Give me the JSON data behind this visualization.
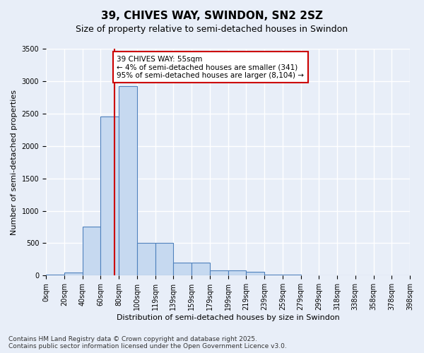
{
  "title": "39, CHIVES WAY, SWINDON, SN2 2SZ",
  "subtitle": "Size of property relative to semi-detached houses in Swindon",
  "xlabel": "Distribution of semi-detached houses by size in Swindon",
  "ylabel": "Number of semi-detached properties",
  "footer": "Contains HM Land Registry data © Crown copyright and database right 2025.\nContains public sector information licensed under the Open Government Licence v3.0.",
  "bins": [
    "0sqm",
    "20sqm",
    "40sqm",
    "60sqm",
    "80sqm",
    "100sqm",
    "119sqm",
    "139sqm",
    "159sqm",
    "179sqm",
    "199sqm",
    "219sqm",
    "239sqm",
    "259sqm",
    "279sqm",
    "299sqm",
    "318sqm",
    "338sqm",
    "358sqm",
    "378sqm",
    "398sqm"
  ],
  "values": [
    10,
    45,
    760,
    2450,
    2920,
    510,
    510,
    195,
    195,
    85,
    85,
    60,
    15,
    15,
    5,
    5,
    0,
    0,
    0,
    0
  ],
  "bar_color": "#c6d9f0",
  "bar_edge_color": "#4f81bd",
  "annotation_text": "39 CHIVES WAY: 55sqm\n← 4% of semi-detached houses are smaller (341)\n95% of semi-detached houses are larger (8,104) →",
  "annotation_box_color": "#ffffff",
  "annotation_box_edge": "#cc0000",
  "vline_color": "#cc0000",
  "vline_x": 3.75,
  "ylim": [
    0,
    3500
  ],
  "yticks": [
    0,
    500,
    1000,
    1500,
    2000,
    2500,
    3000,
    3500
  ],
  "bg_color": "#e8eef8",
  "plot_bg": "#e8eef8",
  "grid_color": "#ffffff",
  "title_fontsize": 11,
  "subtitle_fontsize": 9,
  "axis_label_fontsize": 8,
  "tick_fontsize": 7,
  "footer_fontsize": 6.5
}
